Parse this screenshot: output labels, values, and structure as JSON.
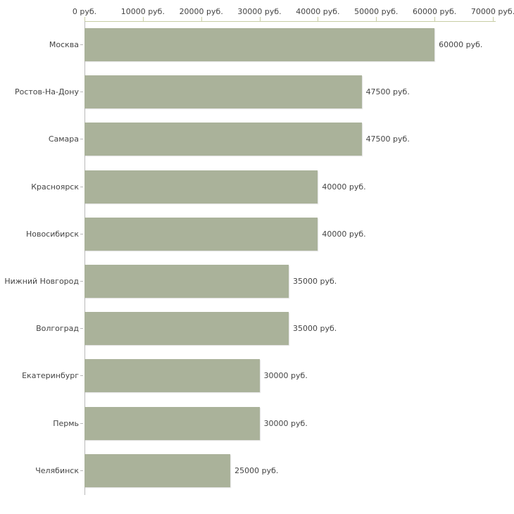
{
  "chart_data": {
    "type": "bar",
    "orientation": "horizontal",
    "title": "",
    "xlabel": "",
    "ylabel": "",
    "categories": [
      "Москва",
      "Ростов-На-Дону",
      "Самара",
      "Красноярск",
      "Новосибирск",
      "Нижний Новгород",
      "Волгоград",
      "Екатеринбург",
      "Пермь",
      "Челябинск"
    ],
    "values": [
      60000,
      47500,
      47500,
      40000,
      40000,
      35000,
      35000,
      30000,
      30000,
      25000
    ],
    "value_labels": [
      "60000 руб.",
      "47500 руб.",
      "47500 руб.",
      "40000 руб.",
      "40000 руб.",
      "35000 руб.",
      "35000 руб.",
      "30000 руб.",
      "30000 руб.",
      "25000 руб."
    ],
    "x_axis": {
      "min": 0,
      "max": 70000,
      "tick_values": [
        0,
        10000,
        20000,
        30000,
        40000,
        50000,
        60000,
        70000
      ],
      "tick_labels": [
        "0 руб.",
        "10000 руб.",
        "20000 руб.",
        "30000 руб.",
        "40000 руб.",
        "50000 руб.",
        "60000 руб.",
        "70000 руб."
      ]
    },
    "legend": null,
    "grid": false,
    "colors": {
      "bar": "#aab29a",
      "top_axis_line": "#c8cda5",
      "top_axis_tick": "#c8cda5",
      "left_axis_line": "#b9b9b9",
      "text": "#444444",
      "background": "#ffffff"
    }
  }
}
